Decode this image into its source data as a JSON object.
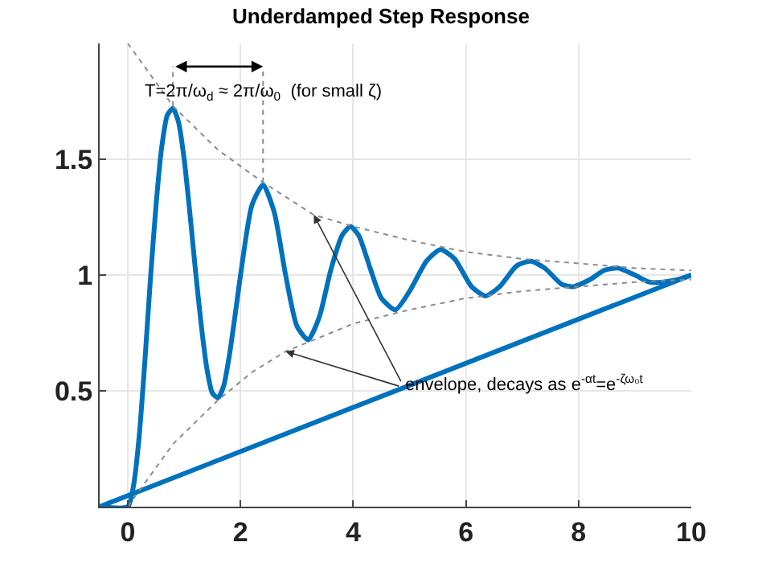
{
  "chart_data": {
    "type": "line",
    "title": "Underdamped Step Response",
    "xlim": [
      -0.5,
      10
    ],
    "xticks": [
      0,
      2,
      4,
      6,
      8,
      10
    ],
    "ylim": [
      0,
      2
    ],
    "yticks": [
      {
        "value": 0,
        "label": null
      },
      0.5,
      1,
      1.5
    ],
    "grid": true,
    "marker": "none",
    "series": [
      {
        "color": "#0072bd",
        "line_style": "solid",
        "x": [
          -0.5,
          0,
          0.1,
          0.2,
          0.3,
          0.4,
          0.5,
          0.6,
          0.7,
          0.8,
          0.9,
          1.0,
          1.1,
          1.2,
          1.3,
          1.4,
          1.5,
          1.6,
          1.7,
          1.8,
          1.9,
          2.0,
          2.2,
          2.4,
          2.6,
          2.8,
          3.0,
          3.2,
          3.4,
          3.6,
          3.8,
          3.95,
          4.1,
          4.3,
          4.5,
          4.75,
          5.0,
          5.3,
          5.55,
          5.8,
          6.1,
          6.35,
          6.6,
          6.9,
          7.15,
          7.4,
          7.7,
          7.9,
          8.2,
          8.45,
          8.7,
          9.0,
          9.25,
          9.5,
          9.75,
          10
        ],
        "values": [
          0,
          0,
          0.09,
          0.3,
          0.62,
          0.98,
          1.3,
          1.55,
          1.69,
          1.72,
          1.66,
          1.5,
          1.27,
          1.02,
          0.79,
          0.6,
          0.49,
          0.47,
          0.52,
          0.65,
          0.82,
          1.0,
          1.3,
          1.39,
          1.27,
          1.0,
          0.78,
          0.72,
          0.82,
          1.02,
          1.17,
          1.21,
          1.17,
          1.03,
          0.9,
          0.85,
          0.93,
          1.06,
          1.11,
          1.07,
          0.95,
          0.91,
          0.95,
          1.04,
          1.06,
          1.03,
          0.96,
          0.95,
          0.98,
          1.02,
          1.03,
          1.0,
          0.97,
          0.97,
          0.98,
          1.0
        ]
      },
      {
        "color": "#0072bd",
        "line_style": "solid",
        "x": [
          -0.5,
          10
        ],
        "values": [
          0,
          1
        ]
      },
      {
        "color": "#8c8c8c",
        "line_style": "dotted",
        "x": [
          0,
          0.8,
          1.6,
          2.4,
          3.3,
          4,
          5,
          6,
          7,
          8,
          9,
          10
        ],
        "values": [
          2.0,
          1.73,
          1.54,
          1.4,
          1.26,
          1.21,
          1.15,
          1.1,
          1.07,
          1.05,
          1.03,
          1.02
        ]
      },
      {
        "color": "#8c8c8c",
        "line_style": "dotted",
        "x": [
          0,
          0.8,
          1.6,
          2.2,
          2.8,
          3.2,
          4,
          5,
          6,
          7,
          8,
          9,
          10
        ],
        "values": [
          0.0,
          0.27,
          0.46,
          0.58,
          0.67,
          0.71,
          0.79,
          0.85,
          0.9,
          0.93,
          0.95,
          0.97,
          0.98
        ]
      },
      {
        "color": "#8c8c8c",
        "line_style": "dotted",
        "x": [
          0.8,
          0.8
        ],
        "values": [
          1.73,
          1.9
        ]
      },
      {
        "color": "#8c8c8c",
        "line_style": "dotted",
        "x": [
          2.4,
          2.4
        ],
        "values": [
          1.4,
          1.9
        ]
      }
    ],
    "annotations": [
      {
        "text": "T=2π/ω$_{d}$ ≈ 2π/ω$_{0}$  (for small ζ)",
        "x": 2.4,
        "y": 1.9
      },
      {
        "text": "envelope, decays as e$^{-αt}$=e$^{-ζω₀t}$",
        "x": 3.3,
        "y": 1.26
      }
    ]
  }
}
